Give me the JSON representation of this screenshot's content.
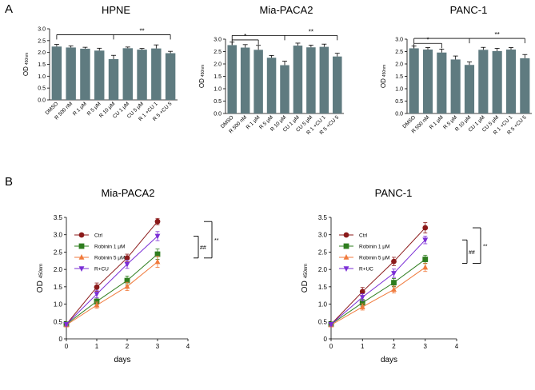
{
  "panel_labels": [
    "A",
    "B"
  ],
  "colors": {
    "bar_fill": "#5f7b80",
    "axis": "#000000"
  },
  "chart_data": [
    {
      "type": "bar",
      "title": "HPNE",
      "ylabel_main": "OD",
      "ylabel_sub": "450nm",
      "categories": [
        "DMSO",
        "R 500 nM",
        "R 1 μM",
        "R 5 μM",
        "R 10 μM",
        "CU 1 μM",
        "CU 5 μM",
        "R 1 +CU 1",
        "R 5 +CU 5"
      ],
      "values": [
        2.25,
        2.21,
        2.16,
        2.08,
        1.72,
        2.18,
        2.12,
        2.17,
        1.97
      ],
      "errors": [
        0.09,
        0.07,
        0.06,
        0.1,
        0.16,
        0.05,
        0.05,
        0.15,
        0.08
      ],
      "ylim": [
        0,
        3.0
      ],
      "yticks": [
        "0.0",
        "0.5",
        "1.0",
        "1.5",
        "2.0",
        "2.5",
        "3.0"
      ],
      "yticks_values": [
        0,
        0.5,
        1,
        1.5,
        2,
        2.5,
        3
      ],
      "brackets": [
        {
          "from": 0,
          "to": 8,
          "y": 2.75,
          "label": "**",
          "drops": [
            0,
            4,
            8
          ]
        }
      ]
    },
    {
      "type": "bar",
      "title": "Mia-PACA2",
      "ylabel_main": "OD",
      "ylabel_sub": "450nm",
      "categories": [
        "DMSO",
        "R 500 nM",
        "R 1 μM",
        "R 5 μM",
        "R 10 μM",
        "CU 1 μM",
        "CU 5 μM",
        "R 1 +CU 1",
        "R 5 +CU 5"
      ],
      "values": [
        2.76,
        2.66,
        2.57,
        2.25,
        1.95,
        2.74,
        2.67,
        2.69,
        2.3
      ],
      "errors": [
        0.12,
        0.12,
        0.18,
        0.09,
        0.16,
        0.1,
        0.09,
        0.11,
        0.13
      ],
      "ylim": [
        0,
        3.0
      ],
      "yticks": [
        "0.0",
        "0.5",
        "1.0",
        "1.5",
        "2.0",
        "2.5",
        "3.0"
      ],
      "yticks_values": [
        0,
        0.5,
        1,
        1.5,
        2,
        2.5,
        3
      ],
      "brackets": [
        {
          "from": 0,
          "to": 8,
          "y": 3.15,
          "label": "**",
          "drops": [
            0,
            4,
            8
          ]
        },
        {
          "from": 0,
          "to": 2,
          "y": 2.97,
          "label": "*",
          "drops": [
            0,
            2
          ]
        }
      ]
    },
    {
      "type": "bar",
      "title": "PANC-1",
      "ylabel_main": "OD",
      "ylabel_sub": "450nm",
      "categories": [
        "DMSO",
        "R 500 nM",
        "R 1 μM",
        "R 5 μM",
        "R 10 μM",
        "CU 1 μM",
        "CU 5 μM",
        "R 1 +CU 1",
        "R 5 +CU 5"
      ],
      "values": [
        2.63,
        2.58,
        2.46,
        2.18,
        1.96,
        2.57,
        2.52,
        2.58,
        2.23
      ],
      "errors": [
        0.09,
        0.08,
        0.14,
        0.14,
        0.12,
        0.1,
        0.11,
        0.08,
        0.15
      ],
      "ylim": [
        0,
        3.0
      ],
      "yticks": [
        "0.0",
        "0.5",
        "1.0",
        "1.5",
        "2.0",
        "2.5",
        "3.0"
      ],
      "yticks_values": [
        0,
        0.5,
        1,
        1.5,
        2,
        2.5,
        3
      ],
      "brackets": [
        {
          "from": 0,
          "to": 8,
          "y": 3.03,
          "label": "**",
          "drops": [
            0,
            4,
            8
          ]
        },
        {
          "from": 0,
          "to": 2,
          "y": 2.83,
          "label": "*",
          "drops": [
            0,
            2
          ]
        }
      ]
    },
    {
      "type": "line",
      "title": "Mia-PACA2",
      "xlabel": "days",
      "ylabel_main": "OD",
      "ylabel_sub": "450nm",
      "xlim": [
        0,
        4
      ],
      "ylim": [
        0,
        3.5
      ],
      "xticks": [
        "0",
        "1",
        "2",
        "3",
        "4"
      ],
      "xticks_values": [
        0,
        1,
        2,
        3,
        4
      ],
      "yticks": [
        "0",
        "0.5",
        "1.0",
        "1.5",
        "2.0",
        "2.5",
        "3.0",
        "3.5"
      ],
      "yticks_values": [
        0,
        0.5,
        1,
        1.5,
        2,
        2.5,
        3,
        3.5
      ],
      "x": [
        0,
        1,
        2,
        3
      ],
      "series": [
        {
          "name": "Ctrl",
          "color": "#8b1a1a",
          "marker": "circle",
          "values": [
            0.42,
            1.49,
            2.33,
            3.38
          ],
          "errors": [
            0.05,
            0.12,
            0.11,
            0.09
          ]
        },
        {
          "name": "Robinin 1 μM",
          "color": "#2e7d1e",
          "marker": "square",
          "values": [
            0.42,
            1.08,
            1.68,
            2.44
          ],
          "errors": [
            0.05,
            0.1,
            0.13,
            0.15
          ]
        },
        {
          "name": "Robinin 5 μM",
          "color": "#f07a3c",
          "marker": "triangle",
          "values": [
            0.4,
            0.97,
            1.51,
            2.22
          ],
          "errors": [
            0.05,
            0.09,
            0.12,
            0.16
          ]
        },
        {
          "name": "R+CU",
          "color": "#7b2fd6",
          "marker": "triangle-down",
          "values": [
            0.42,
            1.29,
            2.15,
            2.96
          ],
          "errors": [
            0.05,
            0.11,
            0.12,
            0.13
          ]
        }
      ],
      "sig": [
        {
          "label": "##"
        },
        {
          "label": "**"
        }
      ]
    },
    {
      "type": "line",
      "title": "PANC-1",
      "xlabel": "days",
      "ylabel_main": "OD",
      "ylabel_sub": "450nm",
      "xlim": [
        0,
        4
      ],
      "ylim": [
        0,
        3.5
      ],
      "xticks": [
        "0",
        "1",
        "2",
        "3",
        "4"
      ],
      "xticks_values": [
        0,
        1,
        2,
        3,
        4
      ],
      "yticks": [
        "0",
        "0.5",
        "1.0",
        "1.5",
        "2.0",
        "2.5",
        "3.0",
        "3.5"
      ],
      "yticks_values": [
        0,
        0.5,
        1,
        1.5,
        2,
        2.5,
        3,
        3.5
      ],
      "x": [
        0,
        1,
        2,
        3
      ],
      "series": [
        {
          "name": "Ctrl",
          "color": "#8b1a1a",
          "marker": "circle",
          "values": [
            0.42,
            1.36,
            2.23,
            3.2
          ],
          "errors": [
            0.05,
            0.12,
            0.12,
            0.15
          ]
        },
        {
          "name": "Robinin 1 μM",
          "color": "#2e7d1e",
          "marker": "square",
          "values": [
            0.42,
            1.04,
            1.62,
            2.29
          ],
          "errors": [
            0.05,
            0.1,
            0.12,
            0.12
          ]
        },
        {
          "name": "Robinin 5 μM",
          "color": "#f07a3c",
          "marker": "triangle",
          "values": [
            0.4,
            0.92,
            1.42,
            2.06
          ],
          "errors": [
            0.05,
            0.09,
            0.1,
            0.12
          ]
        },
        {
          "name": "R+UC",
          "color": "#7b2fd6",
          "marker": "triangle-down",
          "values": [
            0.42,
            1.2,
            1.89,
            2.85
          ],
          "errors": [
            0.05,
            0.1,
            0.12,
            0.11
          ]
        }
      ],
      "sig": [
        {
          "label": "##"
        },
        {
          "label": "**"
        }
      ]
    }
  ]
}
